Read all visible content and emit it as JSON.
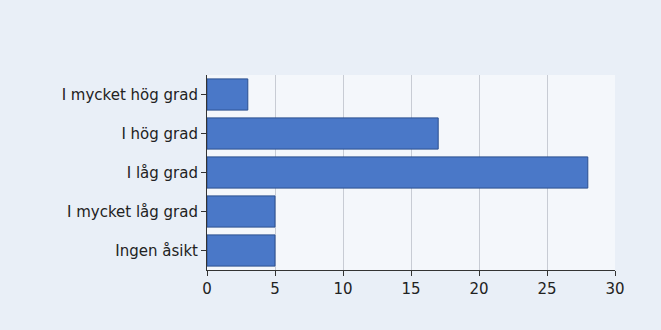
{
  "chart_data": {
    "type": "bar",
    "orientation": "horizontal",
    "categories": [
      "I mycket hög grad",
      "I hög grad",
      "I låg grad",
      "I mycket låg grad",
      "Ingen åsikt"
    ],
    "values": [
      3,
      17,
      28,
      5,
      5
    ],
    "color": "#4a78c8",
    "xlim": [
      0,
      30
    ],
    "xticks": [
      0,
      5,
      10,
      15,
      20,
      25,
      30
    ],
    "grid": true
  }
}
